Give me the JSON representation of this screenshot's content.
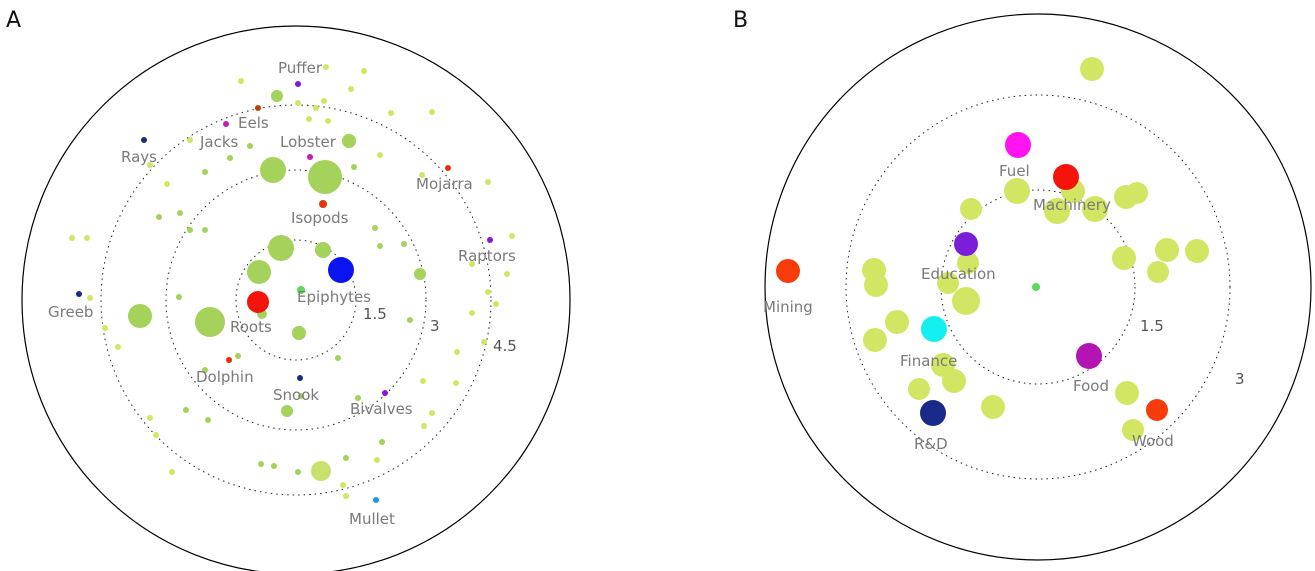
{
  "panels": [
    {
      "id": "A",
      "letter": "A",
      "ring_values": [
        "1.5",
        "3",
        "4.5"
      ],
      "labels": [
        "Puffer",
        "Eels",
        "Jacks",
        "Rays",
        "Lobster",
        "Mojarra",
        "Isopods",
        "Raptors",
        "Greeb",
        "Epiphytes",
        "Roots",
        "Dolphin",
        "Snook",
        "Bivalves",
        "Mullet"
      ],
      "highlighted_nodes": [
        {
          "label": "Epiphytes",
          "color": "#0a14f0"
        },
        {
          "label": "Roots",
          "color": "#f5140a"
        },
        {
          "label": "Puffer",
          "color": "#8a14d8"
        },
        {
          "label": "Eels",
          "color": "#b8420a"
        },
        {
          "label": "Jacks",
          "color": "#c01eb4"
        },
        {
          "label": "Rays",
          "color": "#1a2a82"
        },
        {
          "label": "Lobster",
          "color": "#c01eb4"
        },
        {
          "label": "Mojarra",
          "color": "#f0280a"
        },
        {
          "label": "Isopods",
          "color": "#e8320a"
        },
        {
          "label": "Raptors",
          "color": "#8a14d8"
        },
        {
          "label": "Greeb",
          "color": "#1a2a82"
        },
        {
          "label": "Dolphin",
          "color": "#f0280a"
        },
        {
          "label": "Snook",
          "color": "#1a2a82"
        },
        {
          "label": "Bivalves",
          "color": "#8a14d8"
        },
        {
          "label": "Mullet",
          "color": "#1e96d8"
        }
      ]
    },
    {
      "id": "B",
      "letter": "B",
      "ring_values": [
        "1.5",
        "3"
      ],
      "labels": [
        "Fuel",
        "Machinery",
        "Education",
        "Mining",
        "Finance",
        "Food",
        "R&D",
        "Wood"
      ],
      "highlighted_nodes": [
        {
          "label": "Fuel",
          "color": "#ff14f0"
        },
        {
          "label": "Machinery",
          "color": "#f5140a"
        },
        {
          "label": "Education",
          "color": "#7a1ed8"
        },
        {
          "label": "Mining",
          "color": "#f53c0a"
        },
        {
          "label": "Finance",
          "color": "#14f0f0"
        },
        {
          "label": "Food",
          "color": "#b414b4"
        },
        {
          "label": "R&D",
          "color": "#1a2a8a"
        },
        {
          "label": "Wood",
          "color": "#f53c0a"
        }
      ]
    }
  ],
  "colors": {
    "node_green": "#a4d25a",
    "node_yellow_green": "#d2e664",
    "node_light": "#c8e16e",
    "center_node": "#5adc5a"
  }
}
